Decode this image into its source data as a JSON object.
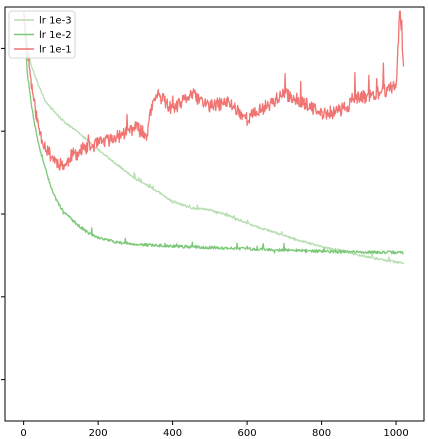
{
  "chart_data": {
    "type": "line",
    "title": "",
    "xlabel": "",
    "ylabel": "",
    "xlim": [
      -50,
      1075
    ],
    "ylim": [
      0,
      100
    ],
    "xticks": [
      0,
      200,
      400,
      600,
      800,
      1000
    ],
    "xtick_labels": [
      "0",
      "200",
      "400",
      "600",
      "800",
      "1000"
    ],
    "yticks": [
      10,
      30,
      50,
      70,
      90
    ],
    "ytick_labels": [
      "",
      "",
      "",
      "",
      ""
    ],
    "grid": false,
    "legend": {
      "placement": "top-left"
    },
    "series": [
      {
        "name": "lr 1e-3",
        "color": "#b7deb1",
        "noise": 0.25,
        "seed": 3,
        "x": [
          0,
          10,
          20,
          40,
          60,
          80,
          100,
          120,
          150,
          200,
          250,
          300,
          350,
          400,
          450,
          500,
          550,
          600,
          650,
          700,
          750,
          800,
          850,
          900,
          950,
          1000,
          1020
        ],
        "y": [
          99,
          91,
          86,
          81,
          77,
          75,
          73,
          71.5,
          69.5,
          65.5,
          62,
          58.5,
          56,
          53,
          51.5,
          51,
          49.6,
          47.8,
          46.2,
          44.8,
          43.4,
          42.1,
          41.2,
          40.1,
          39.2,
          38.4,
          38.2
        ]
      },
      {
        "name": "lr 1e-2",
        "color": "#7ec87a",
        "noise": 0.35,
        "seed": 7,
        "x": [
          0,
          10,
          20,
          30,
          40,
          50,
          60,
          70,
          80,
          90,
          100,
          120,
          140,
          160,
          180,
          200,
          250,
          300,
          400,
          500,
          600,
          700,
          800,
          900,
          1000,
          1020
        ],
        "y": [
          99,
          84,
          77,
          71.5,
          67,
          63.5,
          60.5,
          57.5,
          55,
          53,
          51.5,
          49.5,
          47.8,
          46.3,
          45,
          44.3,
          43.2,
          42.7,
          42.2,
          41.9,
          41.6,
          41.3,
          41,
          40.8,
          40.7,
          40.7
        ]
      },
      {
        "name": "lr 1e-1",
        "color": "#f07472",
        "noise": 1.6,
        "seed": 11,
        "x": [
          0,
          10,
          20,
          30,
          40,
          50,
          60,
          70,
          80,
          90,
          100,
          115,
          125,
          150,
          200,
          250,
          300,
          330,
          345,
          360,
          400,
          450,
          500,
          550,
          600,
          650,
          700,
          750,
          800,
          850,
          900,
          950,
          1000,
          1010,
          1020
        ],
        "y": [
          99,
          90,
          82,
          76,
          71,
          68,
          66,
          64.5,
          63.5,
          62.5,
          62,
          61.8,
          64,
          65,
          67,
          68.5,
          71,
          69,
          76,
          79,
          75,
          79,
          76,
          77,
          73,
          76,
          79,
          77,
          74,
          75,
          78,
          79,
          81,
          99,
          87
        ]
      }
    ]
  }
}
